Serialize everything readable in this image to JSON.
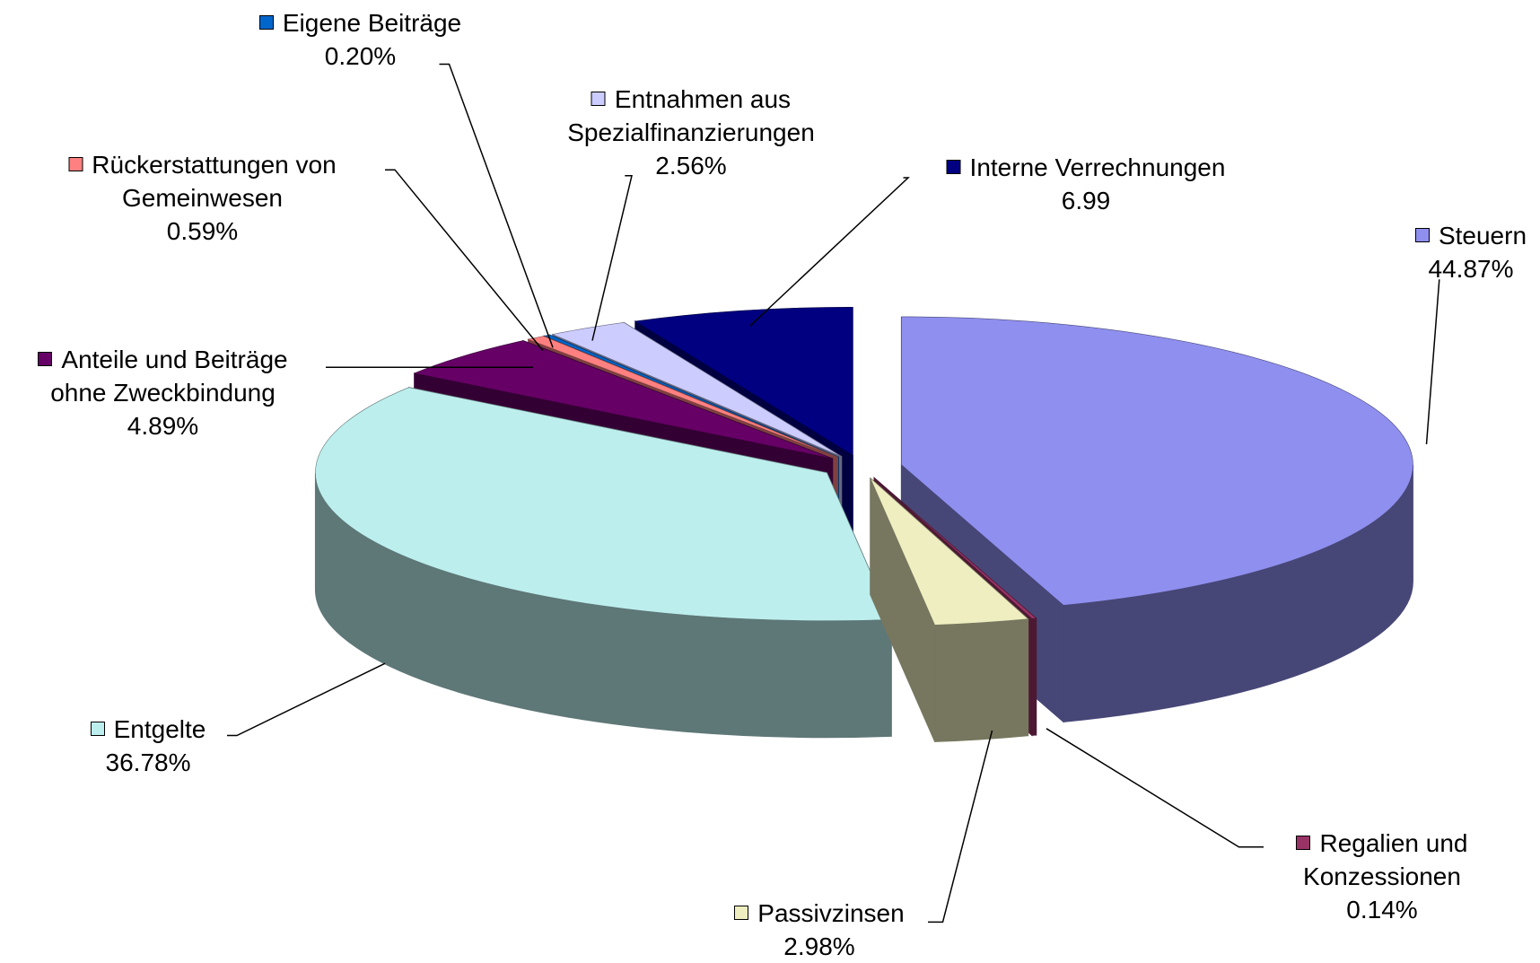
{
  "chart_data": {
    "type": "pie3d",
    "categories": [
      "Steuern",
      "Regalien und Konzessionen",
      "Passivzinsen",
      "Entgelte",
      "Anteile und Beiträge ohne Zweckbindung",
      "Rückerstattungen von Gemeinwesen",
      "Eigene Beiträge",
      "Entnahmen aus Spezialfinanzierungen",
      "Interne Verrechnungen"
    ],
    "values": [
      44.87,
      0.14,
      2.98,
      36.78,
      4.89,
      0.59,
      0.2,
      2.56,
      6.99
    ],
    "value_labels": [
      "44.87%",
      "0.14%",
      "2.98%",
      "36.78%",
      "4.89%",
      "0.59%",
      "0.20%",
      "2.56%",
      "6.99"
    ],
    "colors": [
      "#8f8fef",
      "#993366",
      "#eeeec0",
      "#bdeeee",
      "#660066",
      "#ff8080",
      "#0066cc",
      "#ccccff",
      "#000080"
    ]
  }
}
